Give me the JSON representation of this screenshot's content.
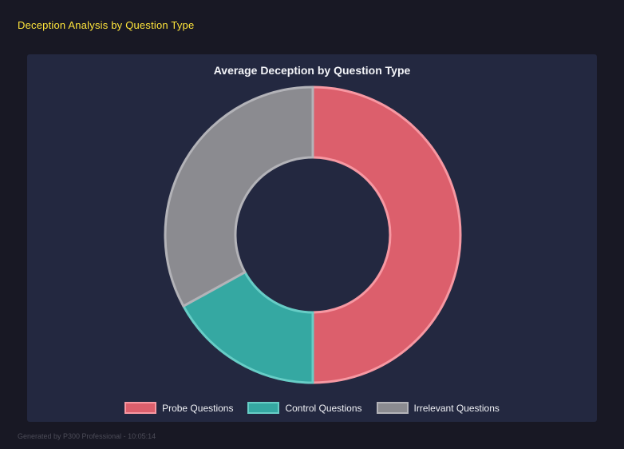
{
  "header": {
    "title": "Deception Analysis by Question Type"
  },
  "footer": {
    "text": "Generated by P300 Professional - 10:05:14"
  },
  "chart_data": {
    "type": "pie",
    "subtype": "donut",
    "title": "Average Deception by Question Type",
    "labels": [
      "Probe Questions",
      "Control Questions",
      "Irrelevant Questions"
    ],
    "values": [
      50,
      17,
      33
    ],
    "segment_colors": [
      "#dc5f6c",
      "#35a8a2",
      "#8b8b90"
    ],
    "border_colors": [
      "#f798a2",
      "#67cdc6",
      "#b3b3b8"
    ],
    "legend_position": "bottom",
    "cutout_percent": 52,
    "start_angle_deg": 0,
    "direction": "clockwise",
    "panel_background": "#232840",
    "page_background": "#181824",
    "header_color": "#ffe53b"
  }
}
